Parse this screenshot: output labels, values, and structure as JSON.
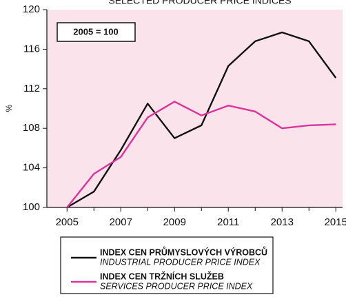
{
  "chart_data": {
    "type": "line",
    "title": "SELECTED PRODUCER PRICE INDICES",
    "y_label": "%",
    "annotation": "2005 = 100",
    "x": [
      2005,
      2006,
      2007,
      2008,
      2009,
      2010,
      2011,
      2012,
      2013,
      2014,
      2015
    ],
    "series": [
      {
        "name": "INDEX CEN PRŮMYSLOVÝCH VÝROBCŮ",
        "name_en": "INDUSTRIAL PRODUCER PRICE INDEX",
        "color": "#111111",
        "values": [
          100,
          101.6,
          105.8,
          110.5,
          107.0,
          108.3,
          114.3,
          116.8,
          117.7,
          116.8,
          113.1
        ]
      },
      {
        "name": "INDEX CEN TRŽNÍCH SLUŽEB",
        "name_en": "SERVICES PRODUCER PRICE INDEX",
        "color": "#e0339a",
        "values": [
          100,
          103.4,
          105.1,
          109.1,
          110.7,
          109.3,
          110.3,
          109.7,
          108.0,
          108.3,
          108.4
        ]
      }
    ],
    "xlim": [
      2004.25,
      2015.25
    ],
    "xticks": [
      2005,
      2007,
      2009,
      2011,
      2013,
      2015
    ],
    "xminorticks": [
      2006,
      2008,
      2010,
      2012,
      2014
    ],
    "ylim": [
      100,
      120
    ],
    "yticks": [
      100,
      104,
      108,
      112,
      116,
      120
    ],
    "background": "#fbe3ec"
  }
}
